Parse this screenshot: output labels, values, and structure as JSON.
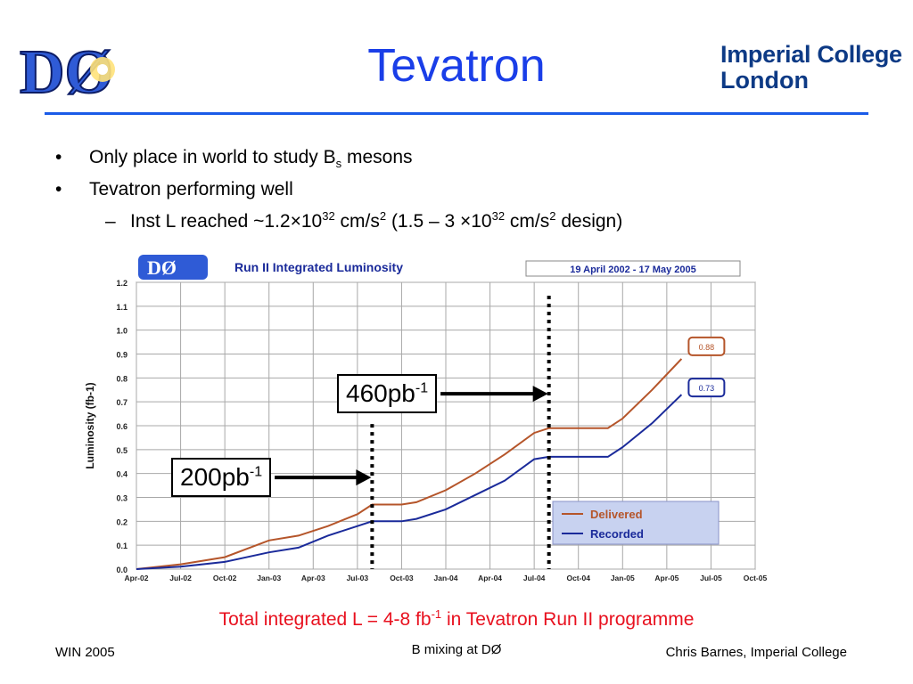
{
  "slide": {
    "title": "Tevatron",
    "logo_left_text": "DØ",
    "logo_right": {
      "line1": "Imperial College",
      "line2": "London"
    },
    "bullets": [
      {
        "text": "Only place in world to study B",
        "sub": "s",
        "after": " mesons"
      },
      {
        "text": "Tevatron performing well"
      }
    ],
    "subbullet": {
      "a": "Inst L reached ~1.2×10",
      "b": "32",
      "c": " cm/s",
      "d": "2",
      "e": " (1.5 – 3 ×10",
      "f": "32",
      "g": " cm/s",
      "h": "2",
      "i": " design)"
    },
    "callouts": [
      {
        "base": "460pb",
        "sup": "-1"
      },
      {
        "base": "200pb",
        "sup": "-1"
      }
    ],
    "total": {
      "a": "Total integrated L = 4-8 fb",
      "b": "-1",
      "c": " in Tevatron Run II programme"
    },
    "footer": {
      "left": "WIN 2005",
      "center": "B mixing at DØ",
      "right": "Chris Barnes, Imperial College"
    }
  },
  "chart_data": {
    "type": "line",
    "title": "Run II Integrated Luminosity",
    "date_range": "19 April 2002 - 17 May 2005",
    "ylabel": "Luminosity (fb-1)",
    "ylim": [
      0,
      1.2
    ],
    "yticks": [
      "0.0",
      "0.1",
      "0.2",
      "0.3",
      "0.4",
      "0.5",
      "0.6",
      "0.7",
      "0.8",
      "0.9",
      "1.0",
      "1.1",
      "1.2"
    ],
    "xticks": [
      "Apr-02",
      "Jul-02",
      "Oct-02",
      "Jan-03",
      "Apr-03",
      "Jul-03",
      "Oct-03",
      "Jan-04",
      "Apr-04",
      "Jul-04",
      "Oct-04",
      "Jan-05",
      "Apr-05",
      "Jul-05",
      "Oct-05"
    ],
    "grid": true,
    "legend": "bottom-right",
    "series": [
      {
        "name": "Delivered",
        "color": "#b5552a",
        "end_label": "0.88",
        "x": [
          "Apr-02",
          "Jul-02",
          "Oct-02",
          "Jan-03",
          "Mar-03",
          "May-03",
          "Jul-03",
          "Aug-03",
          "Oct-03",
          "Nov-03",
          "Jan-04",
          "Mar-04",
          "May-04",
          "Jul-04",
          "Aug-04",
          "Oct-04",
          "Dec-04",
          "Jan-05",
          "Mar-05",
          "May-05"
        ],
        "y": [
          0.0,
          0.02,
          0.05,
          0.12,
          0.14,
          0.18,
          0.23,
          0.27,
          0.27,
          0.28,
          0.33,
          0.4,
          0.48,
          0.57,
          0.59,
          0.59,
          0.59,
          0.63,
          0.75,
          0.88
        ]
      },
      {
        "name": "Recorded",
        "color": "#1a2a9a",
        "end_label": "0.73",
        "x": [
          "Apr-02",
          "Jul-02",
          "Oct-02",
          "Jan-03",
          "Mar-03",
          "May-03",
          "Jul-03",
          "Aug-03",
          "Oct-03",
          "Nov-03",
          "Jan-04",
          "Mar-04",
          "May-04",
          "Jul-04",
          "Aug-04",
          "Oct-04",
          "Dec-04",
          "Jan-05",
          "Mar-05",
          "May-05"
        ],
        "y": [
          0.0,
          0.01,
          0.03,
          0.07,
          0.09,
          0.14,
          0.18,
          0.2,
          0.2,
          0.21,
          0.25,
          0.31,
          0.37,
          0.46,
          0.47,
          0.47,
          0.47,
          0.51,
          0.61,
          0.73
        ]
      }
    ],
    "markers": [
      {
        "x": "Aug-03",
        "callout": 1
      },
      {
        "x": "Aug-04",
        "callout": 0
      }
    ]
  }
}
